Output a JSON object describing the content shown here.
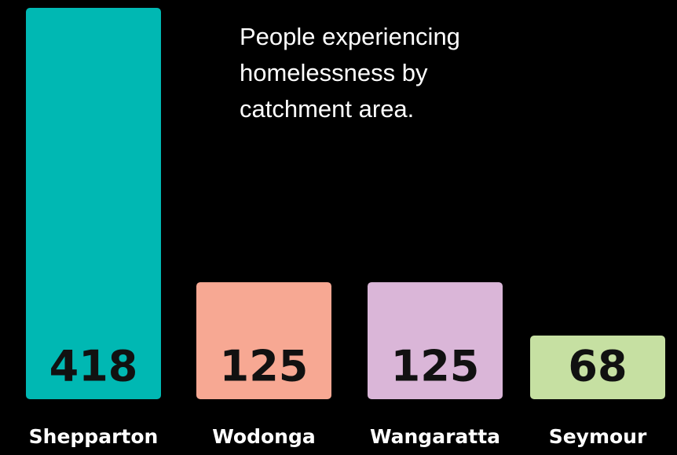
{
  "chart_data": {
    "type": "bar",
    "title": "People experiencing homelessness by catchment area.",
    "categories": [
      "Shepparton",
      "Wodonga",
      "Wangaratta",
      "Seymour"
    ],
    "values": [
      418,
      125,
      125,
      68
    ],
    "colors": [
      "#00b8b3",
      "#f7a893",
      "#dab6d8",
      "#c6e0a2"
    ]
  }
}
